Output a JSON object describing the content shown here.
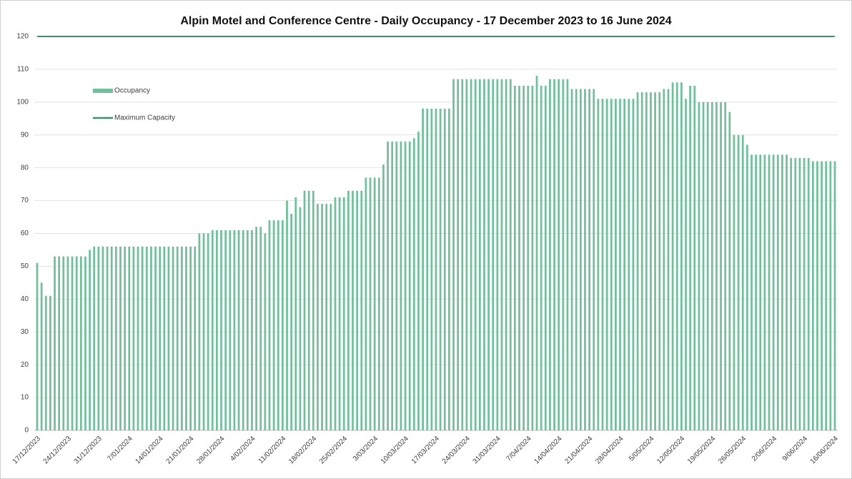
{
  "chart_data": {
    "type": "bar",
    "title": "Alpin Motel and Conference Centre - Daily Occupancy  - 17 December 2023 to 16 June 2024",
    "categories": [
      "17/12/2023",
      null,
      null,
      null,
      null,
      null,
      null,
      "24/12/2023",
      null,
      null,
      null,
      null,
      null,
      null,
      "31/12/2023",
      null,
      null,
      null,
      null,
      null,
      null,
      "7/01/2024",
      null,
      null,
      null,
      null,
      null,
      null,
      "14/01/2024",
      null,
      null,
      null,
      null,
      null,
      null,
      "21/01/2024",
      null,
      null,
      null,
      null,
      null,
      null,
      "28/01/2024",
      null,
      null,
      null,
      null,
      null,
      null,
      "4/02/2024",
      null,
      null,
      null,
      null,
      null,
      null,
      "11/02/2024",
      null,
      null,
      null,
      null,
      null,
      null,
      "18/02/2024",
      null,
      null,
      null,
      null,
      null,
      null,
      "25/02/2024",
      null,
      null,
      null,
      null,
      null,
      null,
      "3/03/2024",
      null,
      null,
      null,
      null,
      null,
      null,
      "10/03/2024",
      null,
      null,
      null,
      null,
      null,
      null,
      "17/03/2024",
      null,
      null,
      null,
      null,
      null,
      null,
      "24/03/2024",
      null,
      null,
      null,
      null,
      null,
      null,
      "31/03/2024",
      null,
      null,
      null,
      null,
      null,
      null,
      "7/04/2024",
      null,
      null,
      null,
      null,
      null,
      null,
      "14/04/2024",
      null,
      null,
      null,
      null,
      null,
      null,
      "21/04/2024",
      null,
      null,
      null,
      null,
      null,
      null,
      "28/04/2024",
      null,
      null,
      null,
      null,
      null,
      null,
      "5/05/2024",
      null,
      null,
      null,
      null,
      null,
      null,
      "12/05/2024",
      null,
      null,
      null,
      null,
      null,
      null,
      "19/05/2024",
      null,
      null,
      null,
      null,
      null,
      null,
      "26/05/2024",
      null,
      null,
      null,
      null,
      null,
      null,
      "2/06/2024",
      null,
      null,
      null,
      null,
      null,
      null,
      "9/06/2024",
      null,
      null,
      null,
      null,
      null,
      null,
      "16/06/2024"
    ],
    "series": [
      {
        "name": "Occupancy",
        "type": "bar",
        "color": "#72bf9b",
        "values": [
          51,
          45,
          41,
          41,
          53,
          53,
          53,
          53,
          53,
          53,
          53,
          53,
          55,
          56,
          56,
          56,
          56,
          56,
          56,
          56,
          56,
          56,
          56,
          56,
          56,
          56,
          56,
          56,
          56,
          56,
          56,
          56,
          56,
          56,
          56,
          56,
          56,
          60,
          60,
          60,
          61,
          61,
          61,
          61,
          61,
          61,
          61,
          61,
          61,
          61,
          62,
          62,
          60,
          64,
          64,
          64,
          64,
          70,
          66,
          71,
          68,
          73,
          73,
          73,
          69,
          69,
          69,
          69,
          71,
          71,
          71,
          73,
          73,
          73,
          73,
          77,
          77,
          77,
          77,
          81,
          88,
          88,
          88,
          88,
          88,
          88,
          89,
          91,
          98,
          98,
          98,
          98,
          98,
          98,
          98,
          107,
          107,
          107,
          107,
          107,
          107,
          107,
          107,
          107,
          107,
          107,
          107,
          107,
          107,
          105,
          105,
          105,
          105,
          105,
          108,
          105,
          105,
          107,
          107,
          107,
          107,
          107,
          104,
          104,
          104,
          104,
          104,
          104,
          101,
          101,
          101,
          101,
          101,
          101,
          101,
          101,
          101,
          103,
          103,
          103,
          103,
          103,
          103,
          104,
          104,
          106,
          106,
          106,
          101,
          105,
          105,
          100,
          100,
          100,
          100,
          100,
          100,
          100,
          97,
          90,
          90,
          90,
          87,
          84,
          84,
          84,
          84,
          84,
          84,
          84,
          84,
          84,
          83,
          83,
          83,
          83,
          83,
          82,
          82,
          82,
          82,
          82,
          82
        ]
      },
      {
        "name": "Maximum Capacity",
        "type": "line",
        "color": "#3f8f6c",
        "values": [
          120,
          120,
          120,
          120,
          120,
          120,
          120,
          120,
          120,
          120,
          120,
          120,
          120,
          120,
          120,
          120,
          120,
          120,
          120,
          120,
          120,
          120,
          120,
          120,
          120,
          120,
          120,
          120,
          120,
          120,
          120,
          120,
          120,
          120,
          120,
          120,
          120,
          120,
          120,
          120,
          120,
          120,
          120,
          120,
          120,
          120,
          120,
          120,
          120,
          120,
          120,
          120,
          120,
          120,
          120,
          120,
          120,
          120,
          120,
          120,
          120,
          120,
          120,
          120,
          120,
          120,
          120,
          120,
          120,
          120,
          120,
          120,
          120,
          120,
          120,
          120,
          120,
          120,
          120,
          120,
          120,
          120,
          120,
          120,
          120,
          120,
          120,
          120,
          120,
          120,
          120,
          120,
          120,
          120,
          120,
          120,
          120,
          120,
          120,
          120,
          120,
          120,
          120,
          120,
          120,
          120,
          120,
          120,
          120,
          120,
          120,
          120,
          120,
          120,
          120,
          120,
          120,
          120,
          120,
          120,
          120,
          120,
          120,
          120,
          120,
          120,
          120,
          120,
          120,
          120,
          120,
          120,
          120,
          120,
          120,
          120,
          120,
          120,
          120,
          120,
          120,
          120,
          120,
          120,
          120,
          120,
          120,
          120,
          120,
          120,
          120,
          120,
          120,
          120,
          120,
          120,
          120,
          120,
          120,
          120,
          120,
          120,
          120,
          120,
          120,
          120,
          120,
          120,
          120,
          120,
          120,
          120,
          120,
          120,
          120,
          120,
          120,
          120,
          120,
          120,
          120,
          120,
          120
        ]
      }
    ],
    "ylim": [
      0,
      120
    ],
    "yticks": [
      0,
      10,
      20,
      30,
      40,
      50,
      60,
      70,
      80,
      90,
      100,
      110,
      120
    ],
    "grid": true,
    "legend": "upper left"
  }
}
